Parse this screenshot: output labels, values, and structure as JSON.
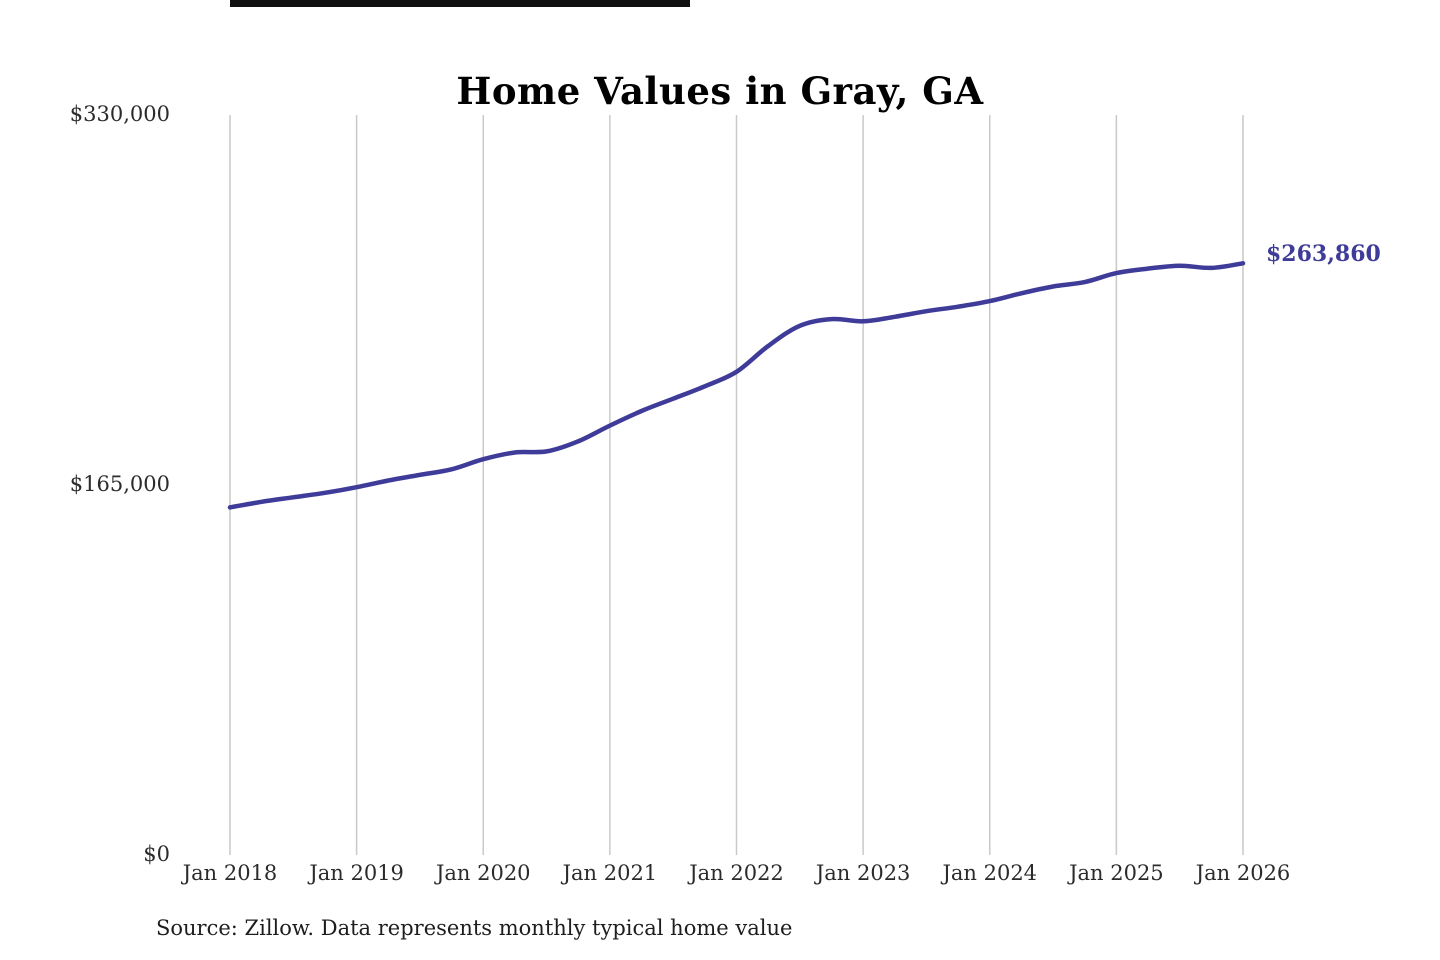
{
  "title": "Home Values in Gray, GA",
  "source_note": "Source: Zillow. Data represents monthly typical home value",
  "colors": {
    "line": "#3f3c99",
    "grid": "#c9c9c9",
    "title_text": "#000000",
    "axis_text": "#2b2b2b",
    "annotation": "#3f3c99"
  },
  "chart_data": {
    "type": "line",
    "title": "Home Values in Gray, GA",
    "xlabel": "",
    "ylabel": "",
    "ylim": [
      0,
      330000
    ],
    "y_ticks": [
      {
        "label": "$0",
        "value": 0
      },
      {
        "label": "$165,000",
        "value": 165000
      },
      {
        "label": "$330,000",
        "value": 330000
      }
    ],
    "x_ticks": [
      "Jan 2018",
      "Jan 2019",
      "Jan 2020",
      "Jan 2021",
      "Jan 2022",
      "Jan 2023",
      "Jan 2024",
      "Jan 2025",
      "Jan 2026"
    ],
    "grid": "vertical",
    "legend": false,
    "series": [
      {
        "name": "Typical home value",
        "months": [
          "Jan 2018",
          "Apr 2018",
          "Jul 2018",
          "Oct 2018",
          "Jan 2019",
          "Apr 2019",
          "Jul 2019",
          "Oct 2019",
          "Jan 2020",
          "Apr 2020",
          "Jul 2020",
          "Oct 2020",
          "Jan 2021",
          "Apr 2021",
          "Jul 2021",
          "Oct 2021",
          "Jan 2022",
          "Apr 2022",
          "Jul 2022",
          "Oct 2022",
          "Jan 2023",
          "Apr 2023",
          "Jul 2023",
          "Oct 2023",
          "Jan 2024",
          "Apr 2024",
          "Jul 2024",
          "Oct 2024",
          "Jan 2025",
          "Apr 2025",
          "Jul 2025",
          "Oct 2025",
          "Jan 2026"
        ],
        "values": [
          155000,
          157500,
          159500,
          161500,
          164000,
          167000,
          169500,
          172000,
          176500,
          179500,
          180000,
          184500,
          191500,
          198000,
          203500,
          209000,
          215500,
          227000,
          236000,
          239000,
          238000,
          240000,
          242500,
          244500,
          247000,
          250500,
          253500,
          255500,
          259500,
          261500,
          262800,
          261800,
          263860
        ]
      }
    ],
    "annotation": {
      "text": "$263,860",
      "month": "Jan 2026",
      "value": 263860
    }
  }
}
